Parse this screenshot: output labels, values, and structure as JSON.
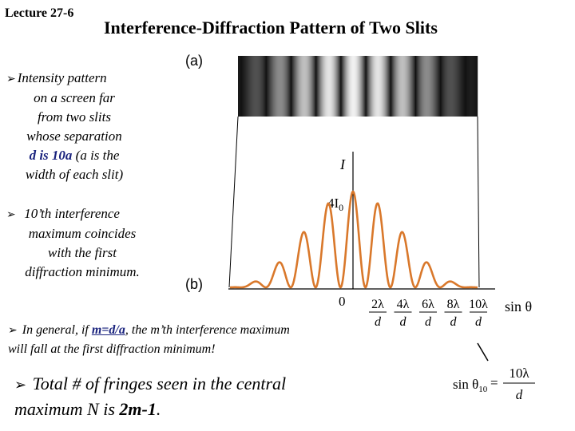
{
  "lecture": "Lecture 27-6",
  "title": "Interference-Diffraction Pattern of Two Slits",
  "bullet1": {
    "lines": [
      "Intensity pattern",
      "on a screen far",
      "from two slits",
      "whose separation"
    ],
    "bold_part": "d is 10a",
    "after_bold": " (a  is the",
    "last_line": "width of each slit)"
  },
  "bullet2": {
    "lines": [
      "10’th interference",
      "maximum coincides",
      "with the first",
      "diffraction minimum."
    ]
  },
  "bullet3": {
    "prefix": "In general, if ",
    "highlight": "m=d/a",
    "line1_rest": ", the m’th interference maximum",
    "line2": "will fall at the first diffraction minimum!"
  },
  "bullet4": {
    "line1": "Total # of fringes seen in the central",
    "line2_prefix": "maximum N is ",
    "line2_bold": "2m-1",
    "line2_suffix": "."
  },
  "figure": {
    "label_a": "(a)",
    "label_b": "(b)",
    "y_axis_label": "I",
    "peak_label_main": "4I",
    "peak_label_sub": "0",
    "origin_label": "0",
    "x_axis_label": "sin θ",
    "tick_numerators": [
      "2λ",
      "4λ",
      "6λ",
      "8λ",
      "10λ"
    ],
    "tick_denominator": "d"
  },
  "formula": {
    "lhs": "sin θ",
    "lhs_sub": "10",
    "eq": "=",
    "numerator": "10λ",
    "denominator": "d"
  },
  "colors": {
    "curve": "#d9782b",
    "highlight_text": "#1a237e",
    "fringe_dark": "#111111"
  }
}
